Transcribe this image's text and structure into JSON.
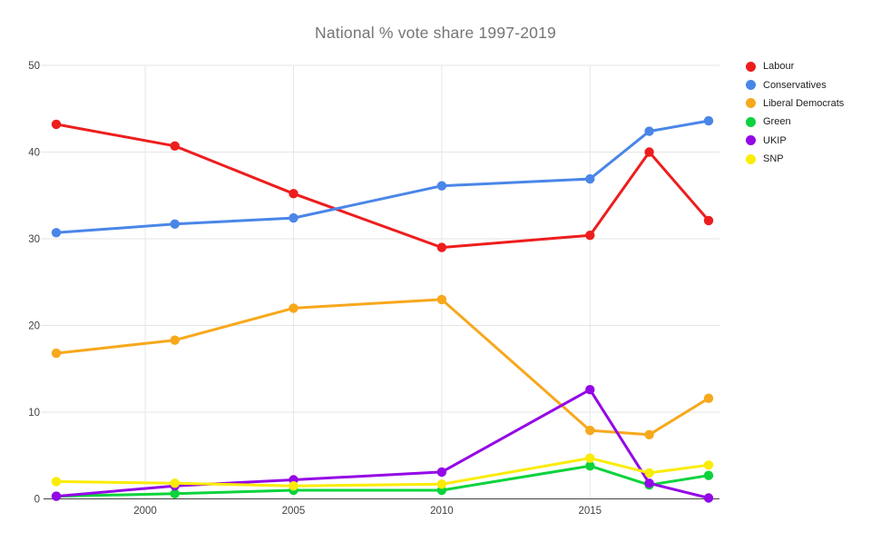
{
  "title": "National % vote share 1997-2019",
  "chart_data": {
    "type": "line",
    "title": "National % vote share 1997-2019",
    "xlabel": "",
    "ylabel": "",
    "x": [
      1997,
      2001,
      2005,
      2010,
      2015,
      2017,
      2019
    ],
    "series": [
      {
        "name": "Labour",
        "color": "#ee1d1d",
        "values": [
          43.2,
          40.7,
          35.2,
          29.0,
          30.4,
          40.0,
          32.1
        ]
      },
      {
        "name": "Conservatives",
        "color": "#4a86e8",
        "values": [
          30.7,
          31.7,
          32.4,
          36.1,
          36.9,
          42.4,
          43.6
        ]
      },
      {
        "name": "Liberal Democrats",
        "color": "#f7a81c",
        "values": [
          16.8,
          18.3,
          22.0,
          23.0,
          7.9,
          7.4,
          11.6
        ]
      },
      {
        "name": "Green",
        "color": "#0bd33c",
        "values": [
          0.3,
          0.6,
          1.0,
          1.0,
          3.8,
          1.6,
          2.7
        ]
      },
      {
        "name": "UKIP",
        "color": "#9407e6",
        "values": [
          0.3,
          1.5,
          2.2,
          3.1,
          12.6,
          1.8,
          0.1
        ]
      },
      {
        "name": "SNP",
        "color": "#faec05",
        "values": [
          2.0,
          1.8,
          1.5,
          1.7,
          4.7,
          3.0,
          3.9
        ]
      }
    ],
    "x_tick_labels": [
      "2000",
      "2005",
      "2010",
      "2015"
    ],
    "x_tick_years": [
      2000,
      2005,
      2010,
      2015
    ],
    "y_tick_labels": [
      "0",
      "10",
      "20",
      "30",
      "40",
      "50"
    ],
    "y_ticks": [
      0,
      10,
      20,
      30,
      40,
      50
    ],
    "xlim": [
      1996.55,
      2019.4
    ],
    "ylim": [
      0,
      50
    ],
    "grid": true,
    "legend_position": "right"
  },
  "colors": {
    "background": "#ffffff",
    "title_text": "#757575",
    "tick_text": "#424242",
    "legend_text": "#212121",
    "gridline": "#e6e6e6",
    "axis_line": "#424242"
  }
}
